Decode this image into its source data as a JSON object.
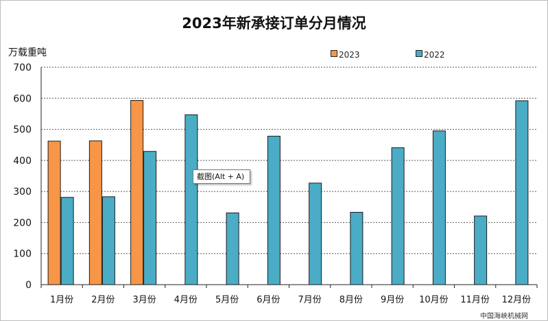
{
  "chart_data": {
    "type": "bar",
    "title": "2023年新承接订单分月情况",
    "ylabel": "万载重吨",
    "xlabel": "",
    "ylim": [
      0,
      700
    ],
    "yticks": [
      0,
      100,
      200,
      300,
      400,
      500,
      600,
      700
    ],
    "grid": true,
    "legend_position": "top-right",
    "categories": [
      "1月份",
      "2月份",
      "3月份",
      "4月份",
      "5月份",
      "6月份",
      "7月份",
      "8月份",
      "9月份",
      "10月份",
      "11月份",
      "12月份"
    ],
    "series": [
      {
        "name": "2023",
        "color": "#f79646",
        "values": [
          462,
          463,
          593,
          null,
          null,
          null,
          null,
          null,
          null,
          null,
          null,
          null
        ]
      },
      {
        "name": "2022",
        "color": "#4bacc6",
        "values": [
          281,
          283,
          429,
          547,
          231,
          478,
          327,
          233,
          441,
          495,
          221,
          592
        ]
      }
    ]
  },
  "tooltip": {
    "text": "截图(Alt + A)"
  },
  "watermark": "中国海峡机械网"
}
